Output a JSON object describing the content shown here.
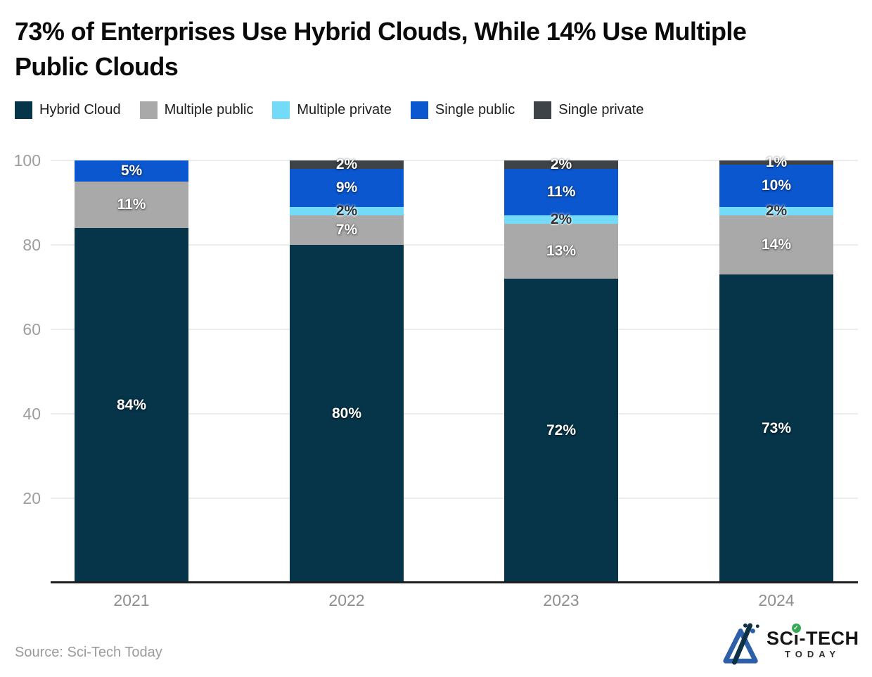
{
  "title": "73% of Enterprises Use Hybrid Clouds, While 14% Use Multiple Public Clouds",
  "source": "Source: Sci-Tech Today",
  "logo": {
    "brand_sc": "SC",
    "brand_i": "i",
    "brand_tech": "-TECH",
    "brand_today": "TODAY",
    "check_glyph": "✓"
  },
  "colors": {
    "hybrid_cloud": "#063449",
    "multiple_public": "#a9a9a9",
    "multiple_private": "#73daf8",
    "single_public": "#0b57d0",
    "single_private": "#3e4347",
    "gridline": "#ececec",
    "axis_line": "#1f1f1f",
    "tick_text": "#9c9c9c"
  },
  "chart_data": {
    "type": "bar",
    "stacked": true,
    "title": "73% of Enterprises Use Hybrid Clouds, While 14% Use Multiple Public Clouds",
    "categories": [
      "2021",
      "2022",
      "2023",
      "2024"
    ],
    "series": [
      {
        "name": "Hybrid Cloud",
        "color": "#063449",
        "label_style": "light",
        "values": [
          84,
          80,
          72,
          73
        ]
      },
      {
        "name": "Multiple public",
        "color": "#a9a9a9",
        "label_style": "light",
        "values": [
          11,
          7,
          13,
          14
        ]
      },
      {
        "name": "Multiple private",
        "color": "#73daf8",
        "label_style": "dark",
        "values": [
          0,
          2,
          2,
          2
        ]
      },
      {
        "name": "Single public",
        "color": "#0b57d0",
        "label_style": "light",
        "values": [
          5,
          9,
          11,
          10
        ]
      },
      {
        "name": "Single private",
        "color": "#3e4347",
        "label_style": "light",
        "values": [
          0,
          2,
          2,
          1
        ]
      }
    ],
    "value_suffix": "%",
    "ylim": [
      0,
      100
    ],
    "yticks": [
      20,
      40,
      60,
      80,
      100
    ],
    "grid": true,
    "legend_position": "top"
  }
}
